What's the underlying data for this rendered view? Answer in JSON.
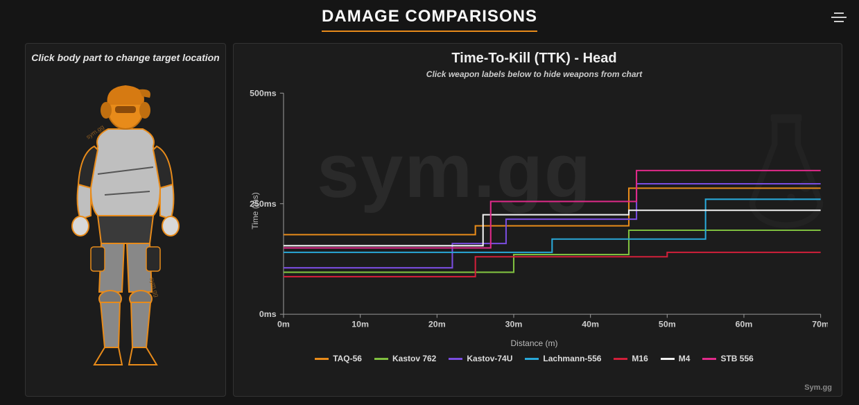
{
  "header": {
    "title": "DAMAGE COMPARISONS"
  },
  "left": {
    "hint": "Click body part to change target location",
    "watermark_small": "sym.gg",
    "body_outline_color": "#e88b1a",
    "body_fill_color": "#bfbfbf",
    "body_dark_fill": "#2a2a2a",
    "selected_part": "head",
    "selected_fill": "#e88b1a"
  },
  "chart": {
    "title": "Time-To-Kill (TTK) - Head",
    "subtitle": "Click weapon labels below to hide weapons from chart",
    "ylabel": "Time (ms)",
    "xlabel": "Distance (m)",
    "credit": "Sym.gg",
    "watermark_text": "sym.gg",
    "background": "#1c1c1c",
    "axis_color": "#999",
    "tick_color": "#ccc",
    "xlim": [
      0,
      70
    ],
    "ylim": [
      0,
      500
    ],
    "xtick_step": 10,
    "ytick_labels": [
      "0ms",
      "250ms",
      "500ms"
    ],
    "ytick_values": [
      0,
      250,
      500
    ],
    "xtick_labels": [
      "0m",
      "10m",
      "20m",
      "30m",
      "40m",
      "50m",
      "60m",
      "70m"
    ],
    "line_width": 2,
    "series": [
      {
        "name": "TAQ-56",
        "color": "#e88b1a",
        "points": [
          [
            0,
            180
          ],
          [
            25,
            180
          ],
          [
            25,
            200
          ],
          [
            45,
            200
          ],
          [
            45,
            285
          ],
          [
            70,
            285
          ]
        ]
      },
      {
        "name": "Kastov 762",
        "color": "#7fbf3f",
        "points": [
          [
            0,
            95
          ],
          [
            30,
            95
          ],
          [
            30,
            135
          ],
          [
            45,
            135
          ],
          [
            45,
            190
          ],
          [
            70,
            190
          ]
        ]
      },
      {
        "name": "Kastov-74U",
        "color": "#7a4de0",
        "points": [
          [
            0,
            105
          ],
          [
            22,
            105
          ],
          [
            22,
            160
          ],
          [
            29,
            160
          ],
          [
            29,
            215
          ],
          [
            46,
            215
          ],
          [
            46,
            295
          ],
          [
            70,
            295
          ]
        ]
      },
      {
        "name": "Lachmann-556",
        "color": "#29a8d8",
        "points": [
          [
            0,
            140
          ],
          [
            35,
            140
          ],
          [
            35,
            170
          ],
          [
            55,
            170
          ],
          [
            55,
            260
          ],
          [
            70,
            260
          ]
        ]
      },
      {
        "name": "M16",
        "color": "#d11f3a",
        "points": [
          [
            0,
            85
          ],
          [
            25,
            85
          ],
          [
            25,
            130
          ],
          [
            50,
            130
          ],
          [
            50,
            140
          ],
          [
            70,
            140
          ]
        ]
      },
      {
        "name": "M4",
        "color": "#f2f2f2",
        "points": [
          [
            0,
            155
          ],
          [
            26,
            155
          ],
          [
            26,
            225
          ],
          [
            45,
            225
          ],
          [
            45,
            235
          ],
          [
            70,
            235
          ]
        ]
      },
      {
        "name": "STB 556",
        "color": "#e02a8a",
        "points": [
          [
            0,
            150
          ],
          [
            27,
            150
          ],
          [
            27,
            255
          ],
          [
            46,
            255
          ],
          [
            46,
            325
          ],
          [
            70,
            325
          ]
        ]
      }
    ]
  },
  "colors": {
    "page_bg": "#151515",
    "panel_bg": "#1c1c1c",
    "panel_border": "#333",
    "accent": "#e88b1a",
    "text": "#dddddd"
  }
}
